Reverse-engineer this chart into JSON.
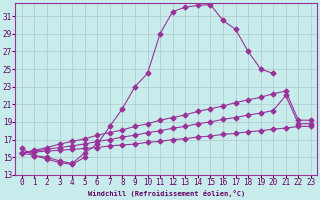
{
  "xlabel": "Windchill (Refroidissement éolien,°C)",
  "background_color": "#c8ecec",
  "grid_color": "#b0c8c8",
  "line_color": "#993399",
  "xlim": [
    -0.5,
    23.5
  ],
  "ylim": [
    13,
    32.5
  ],
  "xticks": [
    0,
    1,
    2,
    3,
    4,
    5,
    6,
    7,
    8,
    9,
    10,
    11,
    12,
    13,
    14,
    15,
    16,
    17,
    18,
    19,
    20,
    21,
    22,
    23
  ],
  "yticks": [
    13,
    15,
    17,
    19,
    21,
    23,
    25,
    27,
    29,
    31
  ],
  "line1_x": [
    0,
    1,
    2,
    3,
    4,
    5,
    6,
    7,
    8,
    9,
    10,
    11,
    12,
    13,
    14,
    15,
    16,
    17,
    18,
    19,
    20
  ],
  "line1_y": [
    16.0,
    15.2,
    15.0,
    14.6,
    14.3,
    15.5,
    16.5,
    18.5,
    20.5,
    23.0,
    24.5,
    29.0,
    31.5,
    32.0,
    32.2,
    32.3,
    30.5,
    29.5,
    27.0,
    25.0,
    24.5
  ],
  "line2_x": [
    0,
    1,
    2,
    3,
    4,
    5,
    6,
    7,
    8,
    9,
    10,
    11,
    12,
    13,
    14,
    15,
    16,
    17,
    18,
    19,
    20,
    21,
    22,
    23
  ],
  "line2_y": [
    15.5,
    15.8,
    16.1,
    16.5,
    16.8,
    17.1,
    17.5,
    17.8,
    18.1,
    18.5,
    18.8,
    19.2,
    19.5,
    19.8,
    20.2,
    20.5,
    20.8,
    21.2,
    21.5,
    21.8,
    22.2,
    22.5,
    19.2,
    19.2
  ],
  "line3_x": [
    0,
    1,
    2,
    3,
    4,
    5,
    6,
    7,
    8,
    9,
    10,
    11,
    12,
    13,
    14,
    15,
    16,
    17,
    18,
    19,
    20,
    21,
    22,
    23
  ],
  "line3_y": [
    15.5,
    15.7,
    15.9,
    16.1,
    16.3,
    16.5,
    16.8,
    17.0,
    17.3,
    17.5,
    17.8,
    18.0,
    18.3,
    18.5,
    18.8,
    19.0,
    19.3,
    19.5,
    19.8,
    20.0,
    20.3,
    22.0,
    18.8,
    18.8
  ],
  "line4_x": [
    0,
    1,
    2,
    3,
    4,
    5,
    6,
    7,
    8,
    9,
    10,
    11,
    12,
    13,
    14,
    15,
    16,
    17,
    18,
    19,
    20,
    21,
    22,
    23
  ],
  "line4_y": [
    15.5,
    15.6,
    15.7,
    15.8,
    15.9,
    16.0,
    16.1,
    16.3,
    16.4,
    16.5,
    16.7,
    16.8,
    17.0,
    17.1,
    17.3,
    17.4,
    17.6,
    17.7,
    17.9,
    18.0,
    18.2,
    18.3,
    18.5,
    18.5
  ],
  "line5_x": [
    0,
    1,
    2,
    3,
    4,
    5
  ],
  "line5_y": [
    15.5,
    15.2,
    14.8,
    14.4,
    14.2,
    15.0
  ]
}
